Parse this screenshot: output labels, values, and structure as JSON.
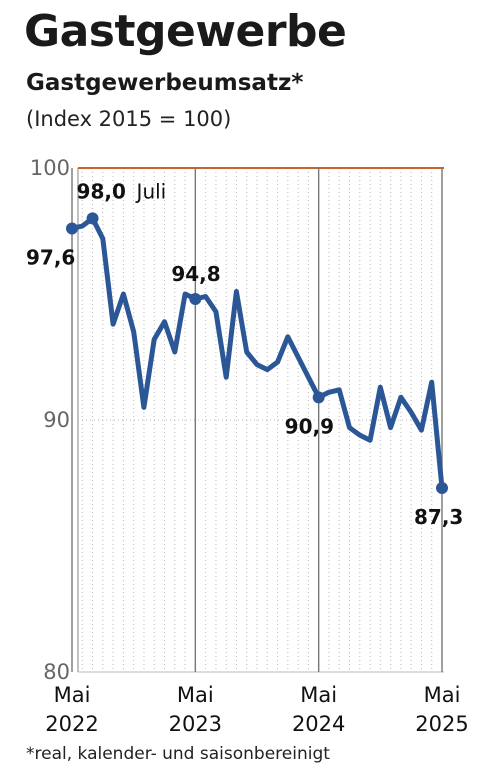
{
  "chart_data": {
    "type": "line",
    "title": "Gastgewerbe",
    "subtitle": "Gastgewerbeumsatz*",
    "note": "(Index 2015 = 100)",
    "footnote": "*real, kalender- und saisonbereinigt",
    "ylim": [
      80,
      100
    ],
    "y_ticks": [
      80,
      90,
      100
    ],
    "y_tick_labels": [
      "80",
      "90",
      "100"
    ],
    "x_ticks": [
      {
        "label_month": "Mai",
        "label_year": "2022",
        "index": 0
      },
      {
        "label_month": "Mai",
        "label_year": "2023",
        "index": 12
      },
      {
        "label_month": "Mai",
        "label_year": "2024",
        "index": 24
      },
      {
        "label_month": "Mai",
        "label_year": "2025",
        "index": 36
      }
    ],
    "reference_line": {
      "value": 100,
      "color": "#c8642a"
    },
    "line_color": "#2b5797",
    "grid": true,
    "series": [
      {
        "values": [
          97.6,
          97.7,
          98.0,
          97.2,
          93.8,
          95.0,
          93.5,
          90.5,
          93.2,
          93.9,
          92.7,
          95.0,
          94.8,
          94.9,
          94.3,
          91.7,
          95.1,
          92.7,
          92.2,
          92.0,
          92.3,
          93.3,
          92.5,
          91.7,
          90.9,
          91.1,
          91.2,
          89.7,
          89.4,
          89.2,
          91.3,
          89.7,
          90.9,
          90.3,
          89.6,
          91.5,
          87.3
        ]
      }
    ],
    "annotations": [
      {
        "index": 0,
        "value": 97.6,
        "text": "97,6",
        "bold": true
      },
      {
        "index": 2,
        "value": 98.0,
        "text": "98,0",
        "bold": true,
        "suffix": "Juli"
      },
      {
        "index": 12,
        "value": 94.8,
        "text": "94,8",
        "bold": true
      },
      {
        "index": 24,
        "value": 90.9,
        "text": "90,9",
        "bold": true
      },
      {
        "index": 36,
        "value": 87.3,
        "text": "87,3",
        "bold": true
      }
    ]
  }
}
